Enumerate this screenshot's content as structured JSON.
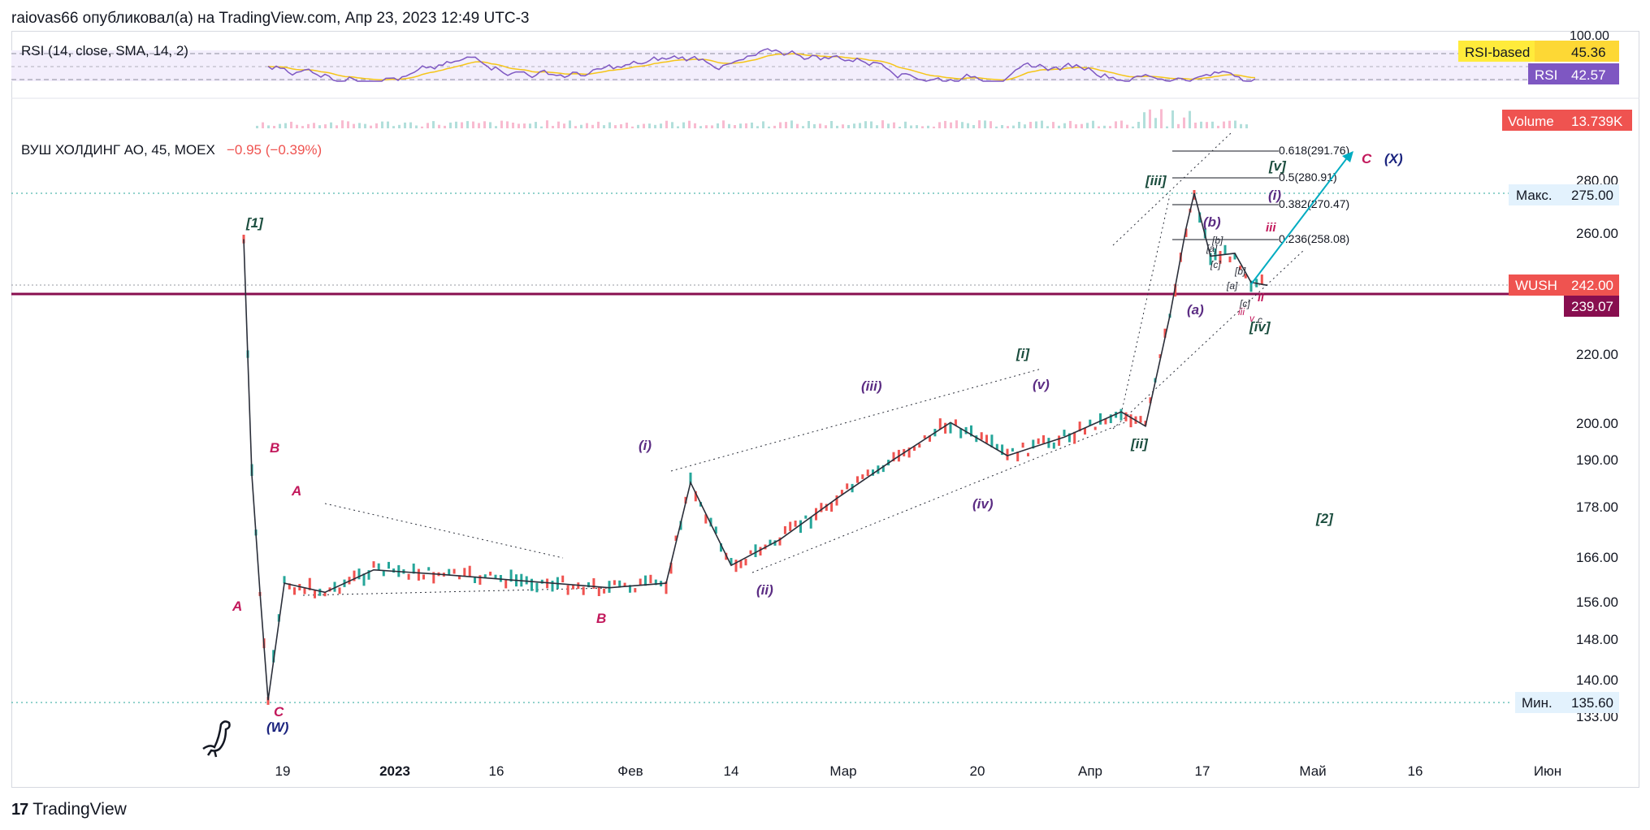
{
  "header": {
    "publisher": "raiovas66 опубликовал(а) на TradingView.com, Апр 23, 2023 12:49 UTC-3"
  },
  "footer": {
    "brand": "TradingView"
  },
  "colors": {
    "accent": "#2962ff",
    "wave_green": "#1b4d3e",
    "wave_purple": "#5b2c83",
    "wave_pink": "#c2185b",
    "wave_navy": "#1a237e",
    "candle_up": "#26a69a",
    "candle_down": "#ef5350",
    "rsi_line": "#7e57c2",
    "rsi_ma": "#f5c518",
    "level_line": "#880e4f",
    "fib_cyan": "#00acc1"
  },
  "rsi_pane": {
    "title": "RSI (14, close, SMA, 14, 2)",
    "axis_top_label": "100.00",
    "ma_label": "RSI-based MA",
    "ma_value": "45.36",
    "rsi_label": "RSI",
    "rsi_value": "42.57"
  },
  "volume_pane": {
    "label": "Volume",
    "value": "13.739K"
  },
  "legend": {
    "symbol": "ВУШ ХОЛДИНГ АО, 45, MOEX",
    "change": "−0.95 (−0.39%)"
  },
  "price_axis": {
    "ticks": [
      "280.00",
      "260.00",
      "220.00",
      "200.00",
      "190.00",
      "178.00",
      "166.00",
      "156.00",
      "148.00",
      "140.00",
      "133.00"
    ],
    "max_label": "Макс.",
    "max_value": "275.00",
    "min_label": "Мин.",
    "min_value": "135.60",
    "symbol_tag": "WUSH",
    "last_price": "242.00",
    "level_value": "239.07"
  },
  "time_axis": {
    "ticks": [
      "19",
      "2023",
      "16",
      "Фев",
      "14",
      "Мар",
      "20",
      "Апр",
      "17",
      "Май",
      "16",
      "Июн"
    ]
  },
  "fib_levels": [
    "0.618(291.76)",
    "0.5(280.91)",
    "0.382(270.47)",
    "0.236(258.08)"
  ],
  "wave_labels": {
    "green": [
      "[1]",
      "[i]",
      "[ii]",
      "[iii]",
      "[iv]",
      "[v]",
      "[2]"
    ],
    "purple": [
      "(i)",
      "(ii)",
      "(iii)",
      "(iv)",
      "(v)",
      "(a)",
      "(b)",
      "(i)"
    ],
    "pink": [
      "A",
      "B",
      "A",
      "C",
      "B",
      "iii",
      "ii",
      "C"
    ],
    "navy": [
      "(W)",
      "(X)"
    ],
    "small": [
      "[a]",
      "[b]",
      "[c]",
      "[a]",
      "[b]",
      "[c]",
      "iii",
      "v",
      "c"
    ]
  },
  "chart_data": {
    "type": "line",
    "title": "ВУШ ХОЛДИНГ АО, 45, MOEX",
    "xlabel": "",
    "ylabel": "",
    "ylim": [
      130,
      300
    ],
    "x": [
      "2022-12-16",
      "2022-12-17",
      "2022-12-18",
      "2022-12-19",
      "2022-12-21",
      "2022-12-26",
      "2023-01-01",
      "2023-01-09",
      "2023-01-16",
      "2023-01-23",
      "2023-01-30",
      "2023-02-06",
      "2023-02-09",
      "2023-02-14",
      "2023-02-20",
      "2023-02-27",
      "2023-03-06",
      "2023-03-13",
      "2023-03-20",
      "2023-03-27",
      "2023-04-03",
      "2023-04-06",
      "2023-04-09",
      "2023-04-11",
      "2023-04-12",
      "2023-04-14",
      "2023-04-17",
      "2023-04-19",
      "2023-04-21"
    ],
    "series": [
      {
        "values": [
          258,
          186,
          158,
          136,
          160,
          158,
          163,
          162,
          161,
          160,
          159,
          160,
          184,
          164,
          170,
          180,
          190,
          200,
          191,
          196,
          203,
          199,
          232,
          262,
          275,
          252,
          253,
          243,
          242
        ]
      }
    ],
    "price_levels": {
      "max": 275.0,
      "min": 135.6,
      "last": 242.0,
      "horizontal_level": 239.07
    },
    "fibonacci_extension": [
      {
        "ratio": 0.618,
        "price": 291.76
      },
      {
        "ratio": 0.5,
        "price": 280.91
      },
      {
        "ratio": 0.382,
        "price": 270.47
      },
      {
        "ratio": 0.236,
        "price": 258.08
      }
    ],
    "rsi": {
      "last": 42.57,
      "ma": 45.36,
      "upper": 70,
      "lower": 30
    },
    "volume": {
      "last": "13.739K"
    },
    "grid": false
  }
}
